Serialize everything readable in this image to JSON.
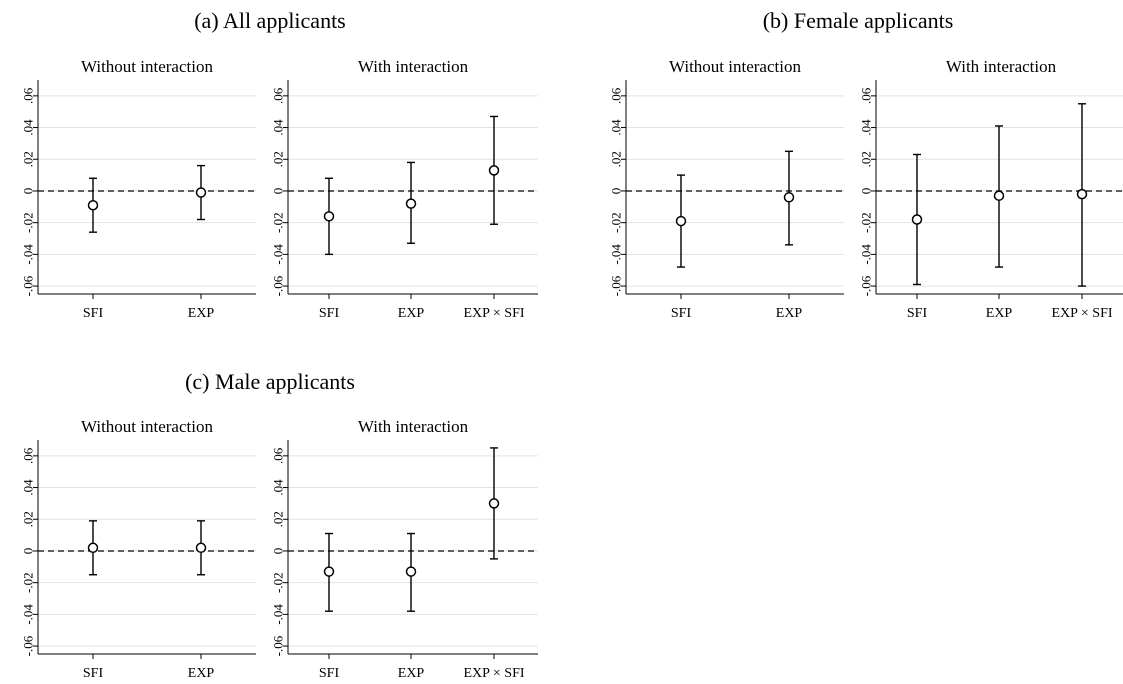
{
  "figure": {
    "panels": [
      {
        "title": "(a) All applicants"
      },
      {
        "title": "(b) Female applicants"
      },
      {
        "title": "(c) Male applicants"
      }
    ]
  },
  "chart_data": [
    {
      "type": "scatter",
      "title": "Without interaction",
      "group": "(a) All applicants",
      "categories": [
        "SFI",
        "EXP"
      ],
      "values": [
        -0.009,
        -0.001
      ],
      "ci_low": [
        -0.026,
        -0.018
      ],
      "ci_high": [
        0.008,
        0.016
      ],
      "ylim": [
        -0.065,
        0.07
      ],
      "yticks": [
        -0.06,
        -0.04,
        -0.02,
        0,
        0.02,
        0.04,
        0.06
      ],
      "ytick_labels": [
        "-.06",
        "-.04",
        "-.02",
        "0",
        ".02",
        ".04",
        ".06"
      ],
      "reference_line": 0,
      "grid": true
    },
    {
      "type": "scatter",
      "title": "With interaction",
      "group": "(a) All applicants",
      "categories": [
        "SFI",
        "EXP",
        "EXP × SFI"
      ],
      "values": [
        -0.016,
        -0.008,
        0.013
      ],
      "ci_low": [
        -0.04,
        -0.033,
        -0.021
      ],
      "ci_high": [
        0.008,
        0.018,
        0.047
      ],
      "ylim": [
        -0.065,
        0.07
      ],
      "yticks": [
        -0.06,
        -0.04,
        -0.02,
        0,
        0.02,
        0.04,
        0.06
      ],
      "ytick_labels": [
        "-.06",
        "-.04",
        "-.02",
        "0",
        ".02",
        ".04",
        ".06"
      ],
      "reference_line": 0,
      "grid": true
    },
    {
      "type": "scatter",
      "title": "Without interaction",
      "group": "(b) Female applicants",
      "categories": [
        "SFI",
        "EXP"
      ],
      "values": [
        -0.019,
        -0.004
      ],
      "ci_low": [
        -0.048,
        -0.034
      ],
      "ci_high": [
        0.01,
        0.025
      ],
      "ylim": [
        -0.065,
        0.07
      ],
      "yticks": [
        -0.06,
        -0.04,
        -0.02,
        0,
        0.02,
        0.04,
        0.06
      ],
      "ytick_labels": [
        "-.06",
        "-.04",
        "-.02",
        "0",
        ".02",
        ".04",
        ".06"
      ],
      "reference_line": 0,
      "grid": true
    },
    {
      "type": "scatter",
      "title": "With interaction",
      "group": "(b) Female applicants",
      "categories": [
        "SFI",
        "EXP",
        "EXP × SFI"
      ],
      "values": [
        -0.018,
        -0.003,
        -0.002
      ],
      "ci_low": [
        -0.059,
        -0.048,
        -0.06
      ],
      "ci_high": [
        0.023,
        0.041,
        0.055
      ],
      "ylim": [
        -0.065,
        0.07
      ],
      "yticks": [
        -0.06,
        -0.04,
        -0.02,
        0,
        0.02,
        0.04,
        0.06
      ],
      "ytick_labels": [
        "-.06",
        "-.04",
        "-.02",
        "0",
        ".02",
        ".04",
        ".06"
      ],
      "reference_line": 0,
      "grid": true
    },
    {
      "type": "scatter",
      "title": "Without interaction",
      "group": "(c) Male applicants",
      "categories": [
        "SFI",
        "EXP"
      ],
      "values": [
        0.002,
        0.002
      ],
      "ci_low": [
        -0.015,
        -0.015
      ],
      "ci_high": [
        0.019,
        0.019
      ],
      "ylim": [
        -0.065,
        0.07
      ],
      "yticks": [
        -0.06,
        -0.04,
        -0.02,
        0,
        0.02,
        0.04,
        0.06
      ],
      "ytick_labels": [
        "-.06",
        "-.04",
        "-.02",
        "0",
        ".02",
        ".04",
        ".06"
      ],
      "reference_line": 0,
      "grid": true
    },
    {
      "type": "scatter",
      "title": "With interaction",
      "group": "(c) Male applicants",
      "categories": [
        "SFI",
        "EXP",
        "EXP × SFI"
      ],
      "values": [
        -0.013,
        -0.013,
        0.03
      ],
      "ci_low": [
        -0.038,
        -0.038,
        -0.005
      ],
      "ci_high": [
        0.011,
        0.011,
        0.065
      ],
      "ylim": [
        -0.065,
        0.07
      ],
      "yticks": [
        -0.06,
        -0.04,
        -0.02,
        0,
        0.02,
        0.04,
        0.06
      ],
      "ytick_labels": [
        "-.06",
        "-.04",
        "-.02",
        "0",
        ".02",
        ".04",
        ".06"
      ],
      "reference_line": 0,
      "grid": true
    }
  ]
}
